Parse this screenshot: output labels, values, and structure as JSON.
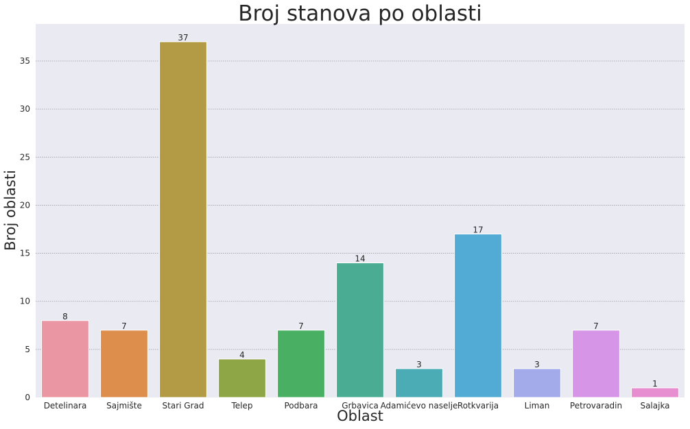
{
  "chart_data": {
    "type": "bar",
    "title": "Broj stanova po oblasti",
    "xlabel": "Oblast",
    "ylabel": "Broj oblasti",
    "categories": [
      "Detelinara",
      "Sajmište",
      "Stari Grad",
      "Telep",
      "Podbara",
      "Grbavica",
      "Adamićevo naselje",
      "Rotkvarija",
      "Liman",
      "Petrovaradin",
      "Salajka"
    ],
    "values": [
      8,
      7,
      37,
      4,
      7,
      14,
      3,
      17,
      3,
      7,
      1
    ],
    "value_labels": [
      "8",
      "7",
      "37",
      "4",
      "7",
      "14",
      "3",
      "17",
      "3",
      "7",
      "1"
    ],
    "ylim": [
      0,
      38.85
    ],
    "yticks": [
      0,
      5,
      10,
      15,
      20,
      25,
      30,
      35
    ],
    "ytick_labels": [
      "0",
      "5",
      "10",
      "15",
      "20",
      "25",
      "30",
      "35"
    ],
    "grid": "horizontal dotted",
    "colors": [
      "#ea96a3",
      "#dd8d4c",
      "#b39a45",
      "#8ea646",
      "#48af63",
      "#4aac93",
      "#4cacb5",
      "#52abd5",
      "#a3abea",
      "#d795e8",
      "#e78ed0"
    ],
    "background": "#eaeaf2"
  }
}
